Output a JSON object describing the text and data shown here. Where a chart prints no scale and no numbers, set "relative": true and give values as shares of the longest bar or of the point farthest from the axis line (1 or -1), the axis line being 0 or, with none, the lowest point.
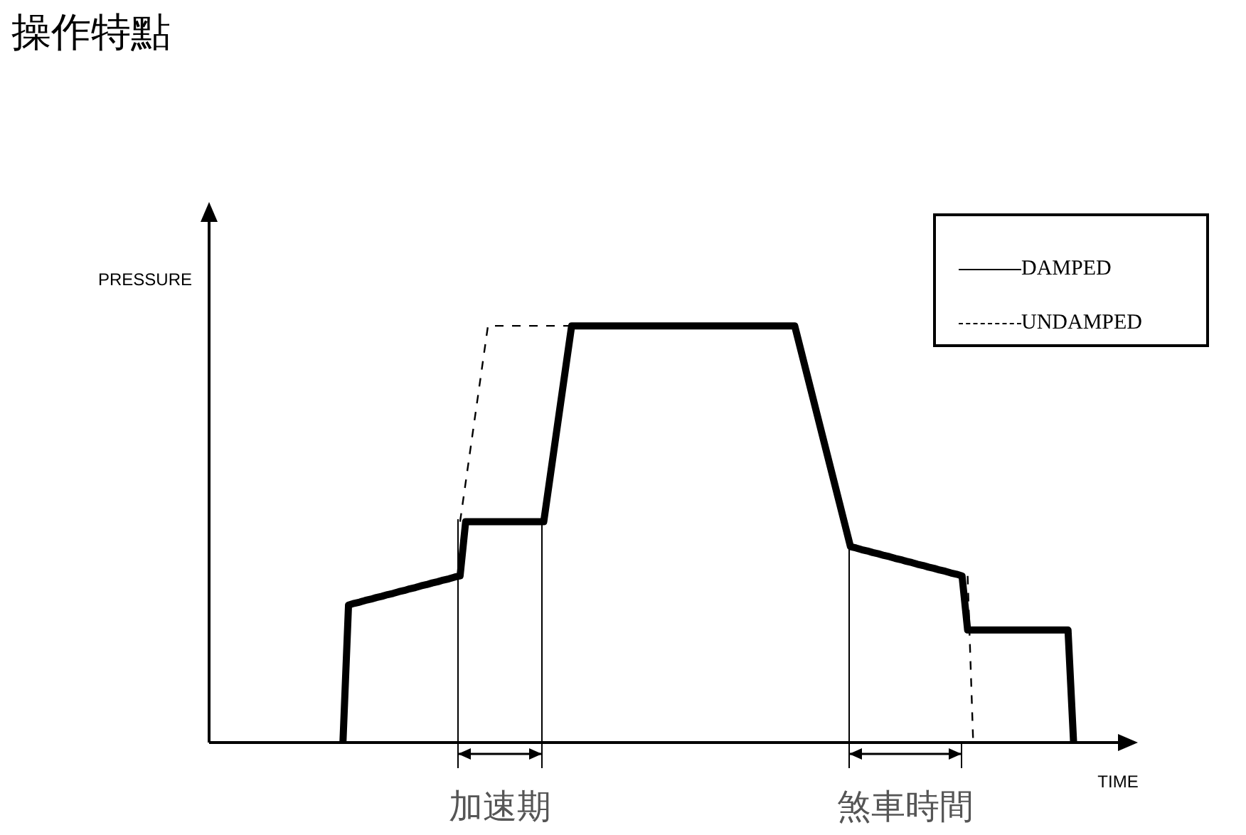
{
  "chart_data": {
    "type": "line",
    "title": "操作特點",
    "xlabel": "TIME",
    "ylabel": "PRESSURE",
    "relative": true,
    "tick_labels": false,
    "legend": "top right",
    "marker": "none",
    "categories": [
      null,
      null,
      null,
      null,
      null,
      null,
      null,
      null,
      null,
      null,
      null,
      null,
      null,
      null,
      null,
      null,
      null,
      null,
      null,
      null,
      null,
      null,
      null,
      null,
      null,
      null,
      null,
      null,
      null,
      null,
      null,
      null,
      null,
      null,
      null,
      null,
      null,
      null,
      null,
      null,
      null,
      null,
      null,
      null,
      null,
      null,
      null,
      null,
      null,
      null,
      null,
      null,
      null,
      null,
      null,
      null,
      null,
      null,
      null,
      null,
      null,
      null,
      null,
      null,
      null,
      null,
      null,
      null,
      null,
      null,
      null,
      null,
      null,
      null,
      null,
      null,
      null,
      null,
      null,
      null,
      null,
      null,
      null,
      null,
      null,
      null,
      null,
      null,
      null,
      null,
      null,
      null,
      null,
      null,
      null,
      null,
      null,
      null,
      null,
      null,
      null,
      null,
      null,
      null,
      null,
      null,
      null,
      null,
      null,
      null,
      null,
      null,
      null,
      null,
      null,
      null,
      null,
      null,
      null,
      null,
      null,
      null,
      null,
      null,
      null,
      null,
      null,
      null,
      null,
      null,
      null,
      null,
      null,
      null,
      null,
      null,
      null,
      null,
      null,
      null,
      null,
      null,
      null,
      null,
      null,
      null,
      null,
      null,
      null,
      null,
      null,
      null,
      null,
      null,
      null,
      null,
      null,
      null,
      null,
      null,
      null,
      null,
      null,
      null,
      null,
      null
    ],
    "series": [
      {
        "name": "DAMPED",
        "color": "#000000",
        "line_style": "solid",
        "values": [
          null,
          null,
          null,
          null,
          null,
          null,
          null,
          null,
          null,
          null,
          null,
          null,
          null,
          null,
          null,
          null,
          null,
          null,
          null,
          null,
          null,
          null,
          null,
          null,
          0,
          0.33,
          0.334,
          0.337,
          0.341,
          0.344,
          0.348,
          0.351,
          0.355,
          0.358,
          0.362,
          0.365,
          0.369,
          0.372,
          0.376,
          0.379,
          0.383,
          0.386,
          0.39,
          0.393,
          0.397,
          0.4,
          0.53,
          0.53,
          0.53,
          0.53,
          0.53,
          0.53,
          0.53,
          0.53,
          0.53,
          0.53,
          0.53,
          0.53,
          0.53,
          0.53,
          0.53,
          0.624,
          0.718,
          0.812,
          0.906,
          1,
          1,
          1,
          1,
          1,
          1,
          1,
          1,
          1,
          1,
          1,
          1,
          1,
          1,
          1,
          1,
          1,
          1,
          1,
          1,
          1,
          1,
          1,
          1,
          1,
          1,
          1,
          1,
          1,
          1,
          1,
          1,
          1,
          1,
          1,
          1,
          1,
          1,
          1,
          1,
          1,
          0.947,
          0.894,
          0.841,
          0.788,
          0.735,
          0.682,
          0.629,
          0.576,
          0.523,
          0.47,
          0.467,
          0.463,
          0.46,
          0.456,
          0.453,
          0.449,
          0.446,
          0.442,
          0.439,
          0.435,
          0.432,
          0.428,
          0.425,
          0.421,
          0.418,
          0.414,
          0.411,
          0.407,
          0.404,
          0.4,
          0.27,
          0.27,
          0.27,
          0.27,
          0.27,
          0.27,
          0.27,
          0.27,
          0.27,
          0.27,
          0.27,
          0.27,
          0.27,
          0.27,
          0.27,
          0.27,
          0.27,
          0.27,
          0.27,
          0,
          null,
          null,
          null,
          null,
          null,
          null,
          null,
          null,
          null,
          null
        ]
      },
      {
        "name": "UNDAMPED",
        "color": "#000000",
        "line_style": "dashed",
        "values": [
          null,
          null,
          null,
          null,
          null,
          null,
          null,
          null,
          null,
          null,
          null,
          null,
          null,
          null,
          null,
          null,
          null,
          null,
          null,
          null,
          null,
          null,
          null,
          null,
          null,
          null,
          null,
          null,
          null,
          null,
          null,
          null,
          null,
          null,
          null,
          null,
          null,
          null,
          null,
          null,
          null,
          null,
          null,
          null,
          null,
          0.53,
          0.624,
          0.718,
          0.812,
          0.906,
          1,
          1,
          1,
          1,
          1,
          1,
          1,
          1,
          1,
          1,
          1,
          1,
          1,
          1,
          1,
          1,
          null,
          null,
          null,
          null,
          null,
          null,
          null,
          null,
          null,
          null,
          null,
          null,
          null,
          null,
          null,
          null,
          null,
          null,
          null,
          null,
          null,
          null,
          null,
          null,
          null,
          null,
          null,
          null,
          null,
          null,
          null,
          null,
          null,
          null,
          null,
          null,
          null,
          null,
          null,
          null,
          null,
          null,
          null,
          null,
          null,
          null,
          null,
          null,
          null,
          null,
          null,
          null,
          null,
          null,
          null,
          null,
          null,
          null,
          null,
          null,
          null,
          null,
          null,
          null,
          null,
          null,
          null,
          null,
          null,
          null,
          0.4,
          0,
          null,
          null,
          null,
          null,
          null,
          null,
          null,
          null,
          null,
          null,
          null,
          null,
          null,
          null,
          null,
          null,
          null,
          null,
          null,
          null,
          null,
          null,
          null,
          null,
          null,
          null,
          null,
          null
        ]
      }
    ],
    "annotations": [
      "加速期",
      "煞車時間"
    ]
  }
}
